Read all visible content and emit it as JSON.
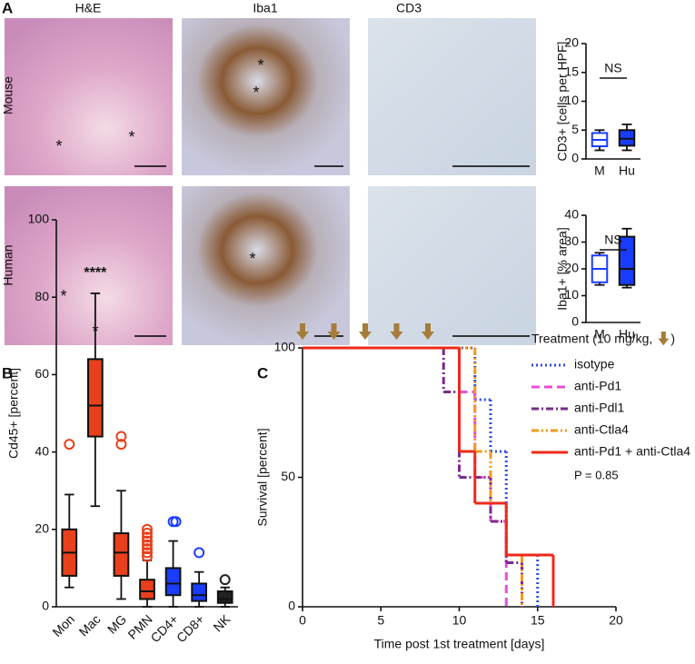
{
  "panel_labels": [
    "A",
    "B",
    "C"
  ],
  "columns": [
    "H&E",
    "Iba1",
    "CD3"
  ],
  "rows": [
    "Mouse",
    "Human"
  ],
  "image_marks": [
    [
      "*",
      "*"
    ],
    [
      "*",
      "*"
    ],
    [],
    [
      "*",
      "*"
    ],
    [
      "*"
    ],
    []
  ],
  "chart_data": [
    {
      "type": "box",
      "ylabel": "CD3+ [cells per HPF]",
      "categories": [
        "M",
        "Hu"
      ],
      "ylim": [
        0,
        20
      ],
      "yticks": [
        0,
        5,
        10,
        15,
        20
      ],
      "annotation": "NS",
      "colors": [
        "#1a3cff",
        "#1a3cff"
      ],
      "filled": [
        false,
        true
      ],
      "boxes": [
        {
          "min": 1.5,
          "q1": 2.2,
          "median": 3.3,
          "q3": 4.5,
          "max": 5,
          "outliers": []
        },
        {
          "min": 1.5,
          "q1": 2.3,
          "median": 3.5,
          "q3": 5,
          "max": 6,
          "outliers": []
        }
      ]
    },
    {
      "type": "box",
      "ylabel": "Iba1+ [% area]",
      "categories": [
        "M",
        "Hu"
      ],
      "ylim": [
        0,
        40
      ],
      "yticks": [
        0,
        10,
        20,
        30,
        40
      ],
      "annotation": "NS",
      "colors": [
        "#1a3cff",
        "#1a3cff"
      ],
      "filled": [
        false,
        true
      ],
      "boxes": [
        {
          "min": 14,
          "q1": 15,
          "median": 20,
          "q3": 25,
          "max": 26,
          "outliers": []
        },
        {
          "min": 13,
          "q1": 14,
          "median": 20,
          "q3": 32,
          "max": 35,
          "outliers": []
        }
      ]
    },
    {
      "type": "box",
      "ylabel": "Cd45+ [percent]",
      "categories": [
        "Mon",
        "Mac",
        "MG",
        "PMN",
        "CD4+",
        "CD8+",
        "NK"
      ],
      "ylim": [
        0,
        100
      ],
      "yticks": [
        0,
        20,
        40,
        60,
        80,
        100
      ],
      "annotation": "****",
      "colors": [
        "#e8401c",
        "#e8401c",
        "#e8401c",
        "#e8401c",
        "#1a3cff",
        "#1a3cff",
        "#222222"
      ],
      "filled": [
        true,
        true,
        true,
        true,
        true,
        true,
        true
      ],
      "boxes": [
        {
          "min": 5,
          "q1": 8,
          "median": 14,
          "q3": 20,
          "max": 29,
          "outliers": [
            42
          ]
        },
        {
          "min": 26,
          "q1": 44,
          "median": 52,
          "q3": 64,
          "max": 81,
          "outliers": []
        },
        {
          "min": 2,
          "q1": 8,
          "median": 14,
          "q3": 19,
          "max": 30,
          "outliers": [
            42,
            44
          ]
        },
        {
          "min": 0,
          "q1": 2,
          "median": 4,
          "q3": 7,
          "max": 12,
          "outliers": [
            13,
            14,
            15,
            16,
            17,
            18,
            19,
            20
          ]
        },
        {
          "min": 0,
          "q1": 3,
          "median": 6,
          "q3": 10,
          "max": 17,
          "outliers": [
            22,
            22
          ]
        },
        {
          "min": 0,
          "q1": 1.5,
          "median": 3,
          "q3": 6,
          "max": 9,
          "outliers": [
            14
          ]
        },
        {
          "min": 0,
          "q1": 1,
          "median": 2,
          "q3": 4,
          "max": 5,
          "outliers": [
            7
          ]
        }
      ]
    },
    {
      "type": "step",
      "xlabel": "Time post 1st treatment [days]",
      "ylabel": "Survival [percent]",
      "xlim": [
        0,
        20
      ],
      "xticks": [
        0,
        5,
        10,
        15,
        20
      ],
      "ylim": [
        0,
        100
      ],
      "yticks": [
        0,
        50,
        100
      ],
      "treatment_days": [
        0,
        2,
        4,
        6,
        8
      ],
      "treatment_color": "#a57c3a",
      "legend_title": "Treatment (10 mg/kg,",
      "legend_title_end": ")",
      "annotation": "P = 0.85",
      "series": [
        {
          "name": "isotype",
          "color": "#2f4ee0",
          "dash": "2,3",
          "x": [
            0,
            11,
            12,
            13,
            15
          ],
          "values": [
            100,
            80,
            60,
            20,
            0
          ]
        },
        {
          "name": "anti-Pd1",
          "color": "#e64fd8",
          "dash": "9,5",
          "x": [
            0,
            10,
            11,
            12,
            13
          ],
          "values": [
            100,
            83,
            50,
            33,
            0
          ]
        },
        {
          "name": "anti-Pdl1",
          "color": "#7a2a8c",
          "dash": "8,3,2,3",
          "x": [
            0,
            9,
            10,
            12,
            13,
            14
          ],
          "values": [
            100,
            83,
            50,
            33,
            17,
            0
          ]
        },
        {
          "name": "anti-Ctla4",
          "color": "#f39a1e",
          "dash": "8,3,2,3,2,3",
          "x": [
            0,
            11,
            12,
            13,
            14
          ],
          "values": [
            100,
            60,
            40,
            20,
            0
          ]
        },
        {
          "name": "anti-Pd1 + anti-Ctla4",
          "color": "#ee2a1a",
          "dash": "none",
          "x": [
            0,
            10,
            11,
            13,
            16
          ],
          "values": [
            100,
            60,
            40,
            20,
            0
          ]
        }
      ]
    }
  ]
}
